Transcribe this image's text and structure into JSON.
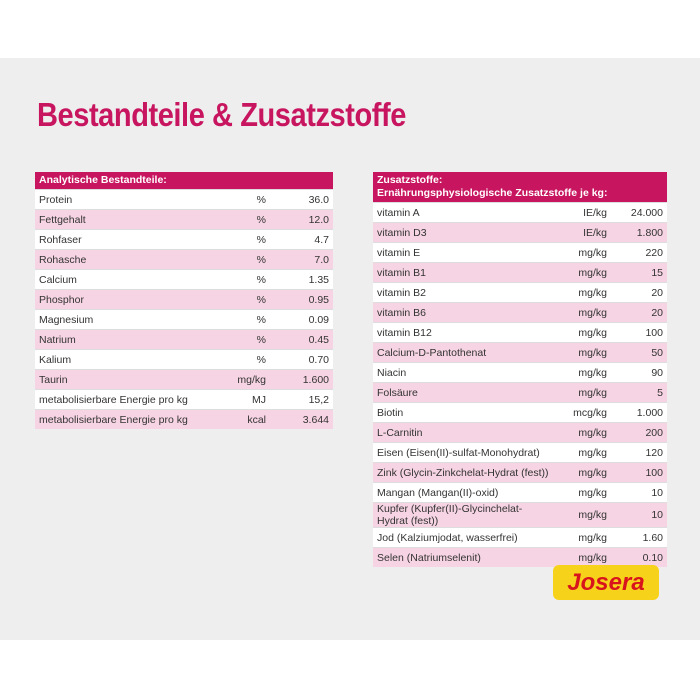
{
  "header": {
    "title": "Bestandteile & Zusatzstoffe"
  },
  "left_table": {
    "header": "Analytische Bestandteile:",
    "rows": [
      [
        "Protein",
        "%",
        "36.0"
      ],
      [
        "Fettgehalt",
        "%",
        "12.0"
      ],
      [
        "Rohfaser",
        "%",
        "4.7"
      ],
      [
        "Rohasche",
        "%",
        "7.0"
      ],
      [
        "Calcium",
        "%",
        "1.35"
      ],
      [
        "Phosphor",
        "%",
        "0.95"
      ],
      [
        "Magnesium",
        "%",
        "0.09"
      ],
      [
        "Natrium",
        "%",
        "0.45"
      ],
      [
        "Kalium",
        "%",
        "0.70"
      ],
      [
        "Taurin",
        "mg/kg",
        "1.600"
      ],
      [
        "metabolisierbare Energie pro kg",
        "MJ",
        "15,2"
      ],
      [
        "metabolisierbare Energie pro kg",
        "kcal",
        "3.644"
      ]
    ]
  },
  "right_table": {
    "header": [
      "Zusatzstoffe:",
      "Ernährungsphysiologische Zusatzstoffe je kg:"
    ],
    "rows": [
      [
        "vitamin A",
        "IE/kg",
        "24.000"
      ],
      [
        "vitamin D3",
        "IE/kg",
        "1.800"
      ],
      [
        "vitamin E",
        "mg/kg",
        "220"
      ],
      [
        "vitamin B1",
        "mg/kg",
        "15"
      ],
      [
        "vitamin B2",
        "mg/kg",
        "20"
      ],
      [
        "vitamin B6",
        "mg/kg",
        "20"
      ],
      [
        "vitamin B12",
        "mg/kg",
        "100"
      ],
      [
        "Calcium-D-Pantothenat",
        "mg/kg",
        "50"
      ],
      [
        "Niacin",
        "mg/kg",
        "90"
      ],
      [
        "Folsäure",
        "mg/kg",
        "5"
      ],
      [
        "Biotin",
        "mcg/kg",
        "1.000"
      ],
      [
        "L-Carnitin",
        "mg/kg",
        "200"
      ],
      [
        "Eisen (Eisen(II)-sulfat-Monohydrat)",
        "mg/kg",
        "120"
      ],
      [
        "Zink (Glycin-Zinkchelat-Hydrat (fest))",
        "mg/kg",
        "100"
      ],
      [
        "Mangan (Mangan(II)-oxid)",
        "mg/kg",
        "10"
      ],
      [
        "Kupfer (Kupfer(II)-Glycinchelat-Hydrat (fest))",
        "mg/kg",
        "10"
      ],
      [
        "Jod (Kalziumjodat, wasserfrei)",
        "mg/kg",
        "1.60"
      ],
      [
        "Selen (Natriumselenit)",
        "mg/kg",
        "0.10"
      ]
    ]
  },
  "logo": "Josera"
}
